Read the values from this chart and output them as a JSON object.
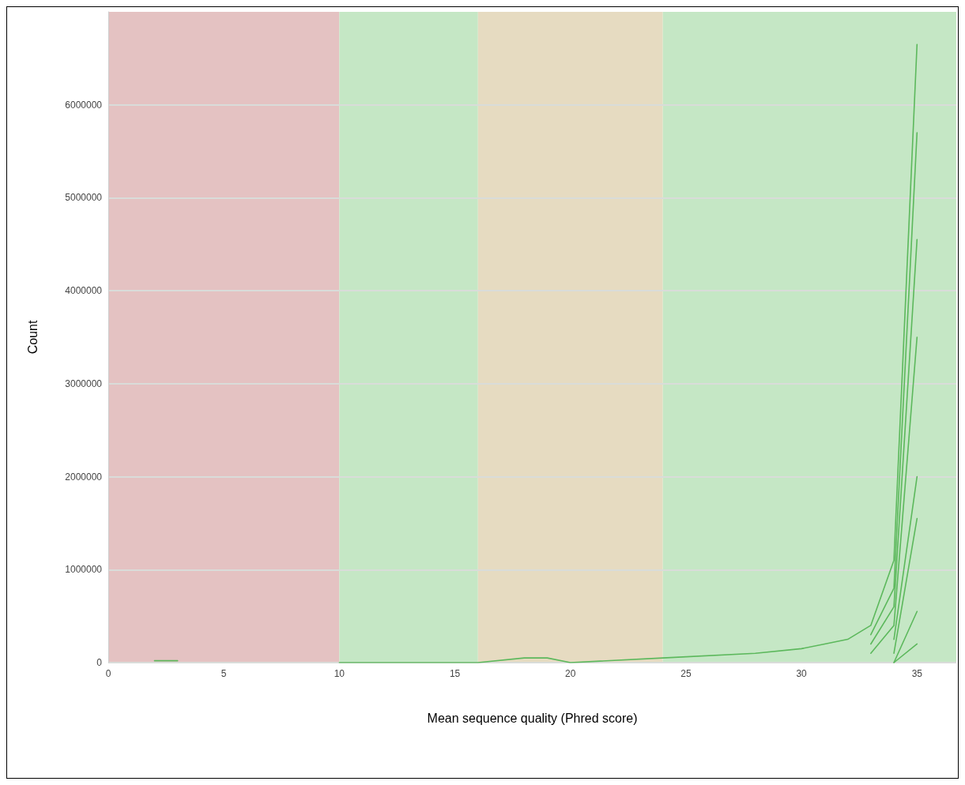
{
  "chart_data": {
    "type": "line",
    "xlabel": "Mean sequence quality (Phred score)",
    "ylabel": "Count",
    "x": [
      2,
      3,
      4,
      10,
      16,
      18,
      19,
      20,
      24,
      28,
      30,
      31,
      32,
      33,
      34,
      35
    ],
    "series": [
      {
        "color": "#5cb85c",
        "values": [
          20000,
          20000,
          null,
          0,
          0,
          50000,
          50000,
          0,
          50000,
          100000,
          150000,
          200000,
          250000,
          400000,
          1100000,
          6650000
        ]
      },
      {
        "color": "#5cb85c",
        "values": [
          null,
          null,
          null,
          null,
          null,
          null,
          null,
          null,
          null,
          null,
          null,
          null,
          null,
          300000,
          800000,
          5700000
        ]
      },
      {
        "color": "#5cb85c",
        "values": [
          null,
          null,
          null,
          null,
          null,
          null,
          null,
          null,
          null,
          null,
          null,
          null,
          null,
          200000,
          600000,
          4550000
        ]
      },
      {
        "color": "#5cb85c",
        "values": [
          null,
          null,
          null,
          null,
          null,
          null,
          null,
          null,
          null,
          null,
          null,
          null,
          null,
          100000,
          400000,
          3500000
        ]
      },
      {
        "color": "#5cb85c",
        "values": [
          null,
          null,
          null,
          null,
          null,
          null,
          null,
          null,
          null,
          null,
          null,
          null,
          null,
          null,
          250000,
          2000000
        ]
      },
      {
        "color": "#5cb85c",
        "values": [
          null,
          null,
          null,
          null,
          null,
          null,
          null,
          null,
          null,
          null,
          null,
          null,
          null,
          null,
          100000,
          1550000
        ]
      },
      {
        "color": "#5cb85c",
        "values": [
          null,
          null,
          null,
          null,
          null,
          null,
          null,
          null,
          null,
          null,
          null,
          null,
          null,
          null,
          0,
          550000
        ]
      },
      {
        "color": "#5cb85c",
        "values": [
          null,
          null,
          null,
          null,
          null,
          null,
          null,
          null,
          null,
          null,
          null,
          null,
          null,
          null,
          0,
          200000
        ]
      }
    ],
    "bands": [
      {
        "axis": "x",
        "from": 0,
        "to": 10,
        "color": "#e4c2c2"
      },
      {
        "axis": "x",
        "from": 10,
        "to": 16,
        "color": "#c5e7c5"
      },
      {
        "axis": "x",
        "from": 16,
        "to": 24,
        "color": "#e6dbc1"
      },
      {
        "axis": "x",
        "from": 24,
        "to": 36.7,
        "color": "#c5e7c5"
      }
    ],
    "xlim": [
      0,
      36.7
    ],
    "xticks": [
      0,
      5,
      10,
      15,
      20,
      25,
      30,
      35
    ],
    "ylim": [
      0,
      7000000
    ],
    "yticks": [
      0,
      1000000,
      2000000,
      3000000,
      4000000,
      5000000,
      6000000
    ],
    "grid": "y",
    "marker": "none",
    "line_style": "solid"
  }
}
